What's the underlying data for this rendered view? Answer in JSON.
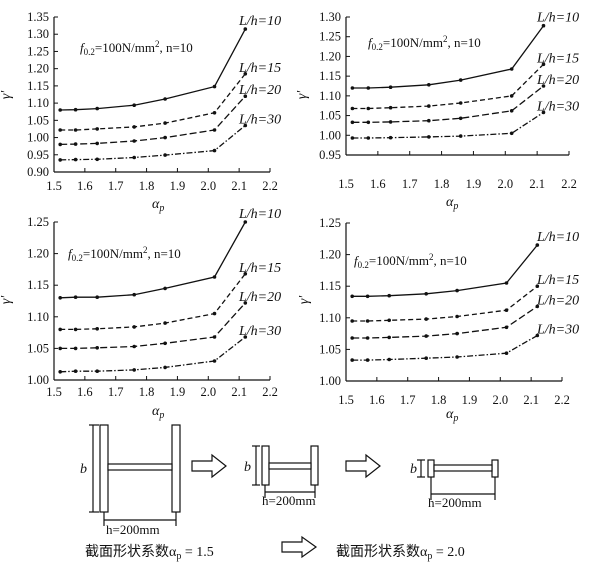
{
  "chart_data": [
    {
      "type": "line",
      "xlabel": "α",
      "xlabel_sub": "p",
      "ylabel": "γ'",
      "xlim": [
        1.5,
        2.2
      ],
      "ylim": [
        0.9,
        1.35
      ],
      "xticks": [
        "1.5",
        "1.6",
        "1.7",
        "1.8",
        "1.9",
        "2.0",
        "2.1",
        "2.2"
      ],
      "yticks": [
        "0.90",
        "0.95",
        "1.00",
        "1.05",
        "1.10",
        "1.15",
        "1.20",
        "1.25",
        "1.30",
        "1.35"
      ],
      "annotation": {
        "pre": "f",
        "sub": "0.2",
        "mid": "=100N/mm",
        "sup": "2",
        "post": ", n=10"
      },
      "x": [
        1.52,
        1.57,
        1.64,
        1.76,
        1.86,
        2.02,
        2.12
      ],
      "series": [
        {
          "name": "L/h=10",
          "style": "solid",
          "values": [
            1.08,
            1.081,
            1.084,
            1.094,
            1.112,
            1.148,
            1.315
          ]
        },
        {
          "name": "L/h=15",
          "style": "dashed",
          "values": [
            1.022,
            1.022,
            1.025,
            1.031,
            1.042,
            1.072,
            1.185
          ]
        },
        {
          "name": "L/h=20",
          "style": "longdash",
          "values": [
            0.98,
            0.981,
            0.983,
            0.99,
            1.0,
            1.022,
            1.12
          ]
        },
        {
          "name": "L/h=30",
          "style": "dashdot",
          "values": [
            0.935,
            0.936,
            0.937,
            0.942,
            0.949,
            0.962,
            1.035
          ]
        }
      ]
    },
    {
      "type": "line",
      "xlabel": "α",
      "xlabel_sub": "p",
      "ylabel": "γ'",
      "xlim": [
        1.5,
        2.2
      ],
      "ylim": [
        0.95,
        1.3
      ],
      "xticks": [
        "1.5",
        "1.6",
        "1.7",
        "1.8",
        "1.9",
        "2.0",
        "2.1",
        "2.2"
      ],
      "yticks": [
        "0.95",
        "1.00",
        "1.05",
        "1.10",
        "1.15",
        "1.20",
        "1.25",
        "1.30"
      ],
      "annotation": {
        "pre": "f",
        "sub": "0.2",
        "mid": "=100N/mm",
        "sup": "2",
        "post": ", n=10"
      },
      "x": [
        1.52,
        1.57,
        1.64,
        1.76,
        1.86,
        2.02,
        2.12
      ],
      "series": [
        {
          "name": "L/h=10",
          "style": "solid",
          "values": [
            1.12,
            1.12,
            1.122,
            1.128,
            1.14,
            1.168,
            1.278
          ]
        },
        {
          "name": "L/h=15",
          "style": "dashed",
          "values": [
            1.068,
            1.068,
            1.07,
            1.074,
            1.082,
            1.1,
            1.18
          ]
        },
        {
          "name": "L/h=20",
          "style": "longdash",
          "values": [
            1.033,
            1.033,
            1.034,
            1.037,
            1.043,
            1.062,
            1.125
          ]
        },
        {
          "name": "L/h=30",
          "style": "dashdot",
          "values": [
            0.993,
            0.993,
            0.994,
            0.996,
            0.998,
            1.005,
            1.058
          ]
        }
      ]
    },
    {
      "type": "line",
      "xlabel": "α",
      "xlabel_sub": "p",
      "ylabel": "γ'",
      "xlim": [
        1.5,
        2.2
      ],
      "ylim": [
        1.0,
        1.25
      ],
      "xticks": [
        "1.5",
        "1.6",
        "1.7",
        "1.8",
        "1.9",
        "2.0",
        "2.1",
        "2.2"
      ],
      "yticks": [
        "1.00",
        "1.05",
        "1.10",
        "1.15",
        "1.20",
        "1.25"
      ],
      "annotation": {
        "pre": "f",
        "sub": "0.2",
        "mid": "=100N/mm",
        "sup": "2",
        "post": ", n=10"
      },
      "x": [
        1.52,
        1.57,
        1.64,
        1.76,
        1.86,
        2.02,
        2.12
      ],
      "series": [
        {
          "name": "L/h=10",
          "style": "solid",
          "values": [
            1.13,
            1.131,
            1.131,
            1.135,
            1.145,
            1.163,
            1.25
          ]
        },
        {
          "name": "L/h=15",
          "style": "dashed",
          "values": [
            1.08,
            1.08,
            1.081,
            1.084,
            1.09,
            1.105,
            1.168
          ]
        },
        {
          "name": "L/h=20",
          "style": "longdash",
          "values": [
            1.05,
            1.05,
            1.051,
            1.053,
            1.058,
            1.068,
            1.122
          ]
        },
        {
          "name": "L/h=30",
          "style": "dashdot",
          "values": [
            1.013,
            1.014,
            1.014,
            1.016,
            1.02,
            1.03,
            1.068
          ]
        }
      ]
    },
    {
      "type": "line",
      "xlabel": "α",
      "xlabel_sub": "p",
      "ylabel": "γ'",
      "xlim": [
        1.5,
        2.2
      ],
      "ylim": [
        1.0,
        1.25
      ],
      "xticks": [
        "1.5",
        "1.6",
        "1.7",
        "1.8",
        "1.9",
        "2.0",
        "2.1",
        "2.2"
      ],
      "yticks": [
        "1.00",
        "1.05",
        "1.10",
        "1.15",
        "1.20",
        "1.25"
      ],
      "annotation": {
        "pre": "f",
        "sub": "0.2",
        "mid": "=100N/mm",
        "sup": "2",
        "post": ", n=10"
      },
      "x": [
        1.52,
        1.57,
        1.64,
        1.76,
        1.86,
        2.02,
        2.12
      ],
      "series": [
        {
          "name": "L/h=10",
          "style": "solid",
          "values": [
            1.134,
            1.134,
            1.135,
            1.138,
            1.143,
            1.155,
            1.215
          ]
        },
        {
          "name": "L/h=15",
          "style": "dashed",
          "values": [
            1.095,
            1.095,
            1.096,
            1.098,
            1.102,
            1.112,
            1.15
          ]
        },
        {
          "name": "L/h=20",
          "style": "longdash",
          "values": [
            1.068,
            1.068,
            1.069,
            1.071,
            1.075,
            1.085,
            1.118
          ]
        },
        {
          "name": "L/h=30",
          "style": "dashdot",
          "values": [
            1.033,
            1.033,
            1.034,
            1.036,
            1.038,
            1.044,
            1.072
          ]
        }
      ]
    }
  ],
  "diagram": {
    "b_label": "b",
    "h_label": "h=200mm",
    "caption_left": "截面形状系数α",
    "caption_left_sub": "p",
    "caption_left_val": " = 1.5",
    "caption_right": "截面形状系数α",
    "caption_right_sub": "p",
    "caption_right_val": " = 2.0"
  }
}
